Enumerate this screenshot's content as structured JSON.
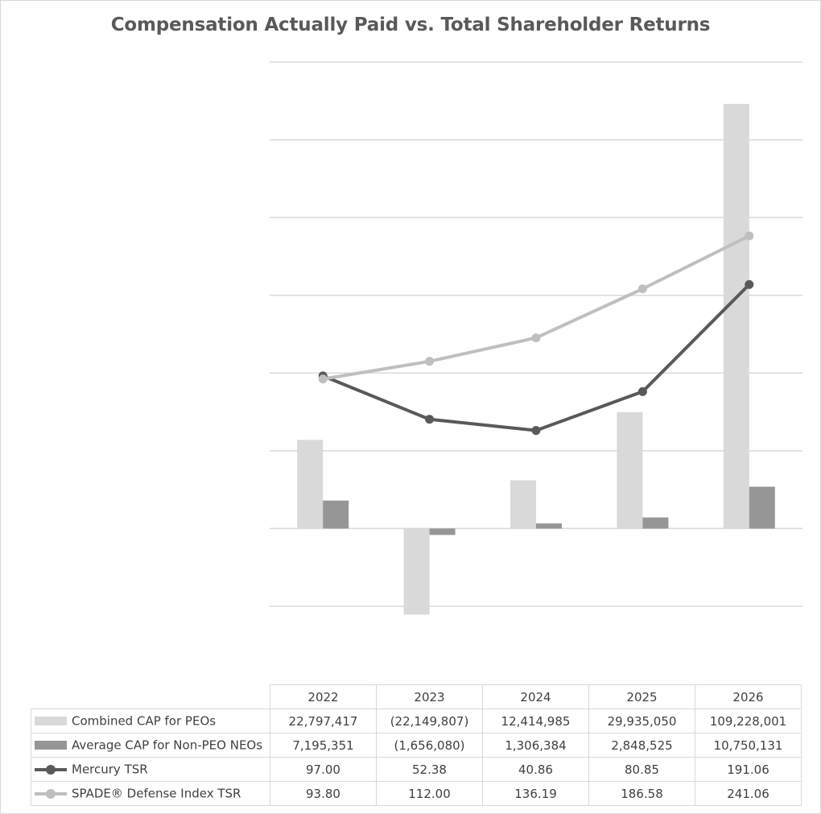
{
  "chart_data": {
    "type": "bar",
    "title": "Compensation Actually Paid vs. Total Shareholder Returns",
    "categories": [
      "2022",
      "2023",
      "2024",
      "2025",
      "2026"
    ],
    "series": [
      {
        "name": "Combined CAP for PEOs",
        "type": "bar",
        "axis": "left",
        "color": "#d9d9d9",
        "values": [
          22797417,
          -22149807,
          12414985,
          29935050,
          109228001
        ],
        "display": [
          "22,797,417",
          "(22,149,807)",
          "12,414,985",
          "29,935,050",
          "109,228,001"
        ]
      },
      {
        "name": "Average CAP for Non-PEO NEOs",
        "type": "bar",
        "axis": "left",
        "color": "#969696",
        "values": [
          7195351,
          -1656080,
          1306384,
          2848525,
          10750131
        ],
        "display": [
          "7,195,351",
          "(1,656,080)",
          "1,306,384",
          "2,848,525",
          "10,750,131"
        ]
      },
      {
        "name": "Mercury TSR",
        "type": "line",
        "axis": "right",
        "color": "#595959",
        "values": [
          97.0,
          52.38,
          40.86,
          80.85,
          191.06
        ],
        "display": [
          "97.00",
          "52.38",
          "40.86",
          "80.85",
          "191.06"
        ]
      },
      {
        "name": "SPADE® Defense Index TSR",
        "type": "line",
        "axis": "right",
        "color": "#bfbfbf",
        "values": [
          93.8,
          112.0,
          136.19,
          186.58,
          241.06
        ],
        "display": [
          "93.80",
          "112.00",
          "136.19",
          "186.58",
          "241.06"
        ]
      }
    ],
    "ylim": [
      -20000000,
      120000000
    ],
    "y2lim": [
      -140,
      420
    ],
    "grid": true,
    "legend": "data table below chart"
  }
}
